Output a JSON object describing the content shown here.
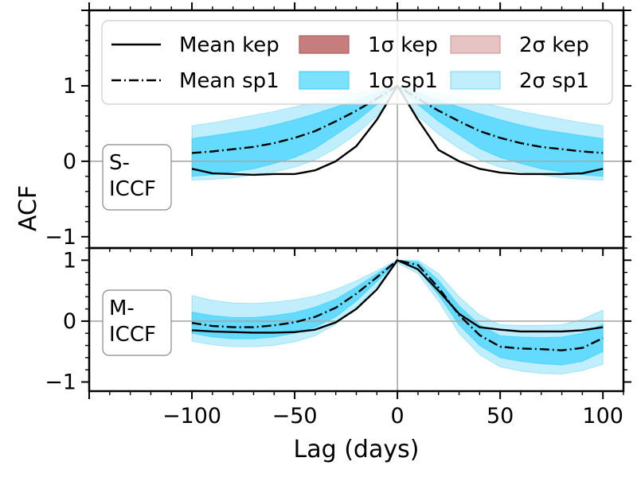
{
  "chart_data": {
    "type": "line",
    "xlabel": "Lag (days)",
    "ylabel": "ACF",
    "xlim": [
      -150,
      110
    ],
    "x_ticks": [
      -100,
      -50,
      0,
      50,
      100
    ],
    "x_tick_labels": [
      "−100",
      "−50",
      "0",
      "50",
      "100"
    ],
    "legend": {
      "placement": "top-left",
      "entries": [
        {
          "label": "Mean kep",
          "kind": "line-solid"
        },
        {
          "label": "1σ kep",
          "kind": "band",
          "color": "#b85c5c",
          "opacity": 0.8
        },
        {
          "label": "2σ kep",
          "kind": "band",
          "color": "#c77c7c",
          "opacity": 0.45
        },
        {
          "label": "Mean sp1",
          "kind": "line-dashdot"
        },
        {
          "label": "1σ sp1",
          "kind": "band",
          "color": "#2ccfff",
          "opacity": 0.62
        },
        {
          "label": "2σ sp1",
          "kind": "band",
          "color": "#45ccf7",
          "opacity": 0.34
        }
      ]
    },
    "panels": [
      {
        "name": "S-ICCF",
        "label_lines": [
          "S-",
          "ICCF"
        ],
        "ylim": [
          -1.15,
          2.0
        ],
        "y_ticks": [
          -1,
          0,
          1
        ],
        "y_tick_labels": [
          "−1",
          "0",
          "1"
        ],
        "x": [
          -100,
          -90,
          -80,
          -70,
          -60,
          -50,
          -40,
          -30,
          -20,
          -10,
          0,
          10,
          20,
          30,
          40,
          50,
          60,
          70,
          80,
          90,
          100
        ],
        "mean_kep": [
          -0.1,
          -0.16,
          -0.17,
          -0.18,
          -0.17,
          -0.17,
          -0.12,
          0.0,
          0.2,
          0.55,
          1.0,
          0.55,
          0.15,
          0.0,
          -0.1,
          -0.15,
          -0.17,
          -0.17,
          -0.17,
          -0.16,
          -0.1
        ],
        "mean_sp1": [
          0.11,
          0.13,
          0.16,
          0.19,
          0.24,
          0.31,
          0.4,
          0.53,
          0.67,
          0.83,
          1.0,
          0.83,
          0.67,
          0.53,
          0.4,
          0.31,
          0.24,
          0.19,
          0.16,
          0.13,
          0.11
        ],
        "sp1_1sig_lower": [
          -0.2,
          -0.18,
          -0.14,
          -0.1,
          -0.03,
          0.05,
          0.17,
          0.35,
          0.53,
          0.75,
          0.98,
          0.75,
          0.53,
          0.35,
          0.17,
          0.05,
          -0.03,
          -0.1,
          -0.14,
          -0.18,
          -0.2
        ],
        "sp1_1sig_upper": [
          0.3,
          0.34,
          0.38,
          0.42,
          0.48,
          0.55,
          0.63,
          0.72,
          0.81,
          0.91,
          1.0,
          0.91,
          0.81,
          0.72,
          0.63,
          0.55,
          0.48,
          0.42,
          0.38,
          0.34,
          0.3
        ],
        "sp1_2sig_lower": [
          -0.25,
          -0.24,
          -0.22,
          -0.18,
          -0.14,
          -0.08,
          0.02,
          0.17,
          0.36,
          0.6,
          0.96,
          0.6,
          0.36,
          0.17,
          0.02,
          -0.08,
          -0.14,
          -0.18,
          -0.22,
          -0.24,
          -0.25
        ],
        "sp1_2sig_upper": [
          0.47,
          0.51,
          0.56,
          0.61,
          0.66,
          0.72,
          0.78,
          0.84,
          0.9,
          0.95,
          1.0,
          0.95,
          0.9,
          0.84,
          0.78,
          0.72,
          0.66,
          0.61,
          0.56,
          0.51,
          0.47
        ]
      },
      {
        "name": "M-ICCF",
        "label_lines": [
          "M-",
          "ICCF"
        ],
        "ylim": [
          -1.15,
          1.2
        ],
        "y_ticks": [
          -1,
          0,
          1
        ],
        "y_tick_labels": [
          "−1",
          "0",
          "1"
        ],
        "x": [
          -100,
          -90,
          -80,
          -70,
          -60,
          -50,
          -40,
          -30,
          -20,
          -10,
          0,
          10,
          20,
          30,
          40,
          50,
          60,
          70,
          80,
          90,
          100
        ],
        "mean_kep": [
          -0.15,
          -0.17,
          -0.18,
          -0.19,
          -0.19,
          -0.18,
          -0.14,
          -0.02,
          0.2,
          0.52,
          1.0,
          0.85,
          0.5,
          0.12,
          -0.1,
          -0.14,
          -0.17,
          -0.17,
          -0.17,
          -0.15,
          -0.1
        ],
        "mean_sp1": [
          -0.03,
          -0.08,
          -0.1,
          -0.1,
          -0.07,
          -0.02,
          0.07,
          0.22,
          0.45,
          0.72,
          1.0,
          0.92,
          0.55,
          0.1,
          -0.23,
          -0.42,
          -0.45,
          -0.46,
          -0.48,
          -0.44,
          -0.28
        ],
        "sp1_1sig_lower": [
          -0.2,
          -0.26,
          -0.29,
          -0.29,
          -0.26,
          -0.2,
          -0.1,
          0.07,
          0.33,
          0.65,
          0.98,
          0.85,
          0.43,
          -0.06,
          -0.4,
          -0.6,
          -0.66,
          -0.7,
          -0.72,
          -0.66,
          -0.5
        ],
        "sp1_1sig_upper": [
          0.15,
          0.09,
          0.06,
          0.06,
          0.09,
          0.14,
          0.23,
          0.36,
          0.56,
          0.78,
          1.0,
          0.97,
          0.67,
          0.25,
          -0.06,
          -0.24,
          -0.26,
          -0.27,
          -0.26,
          -0.2,
          -0.05
        ],
        "sp1_2sig_lower": [
          -0.33,
          -0.39,
          -0.42,
          -0.42,
          -0.4,
          -0.34,
          -0.24,
          -0.05,
          0.22,
          0.57,
          0.96,
          0.78,
          0.33,
          -0.2,
          -0.55,
          -0.75,
          -0.82,
          -0.86,
          -0.87,
          -0.81,
          -0.71
        ],
        "sp1_2sig_upper": [
          0.42,
          0.34,
          0.3,
          0.29,
          0.31,
          0.35,
          0.41,
          0.52,
          0.66,
          0.83,
          1.0,
          1.0,
          0.78,
          0.4,
          0.1,
          -0.06,
          -0.07,
          -0.07,
          -0.06,
          0.03,
          0.18
        ]
      }
    ]
  }
}
